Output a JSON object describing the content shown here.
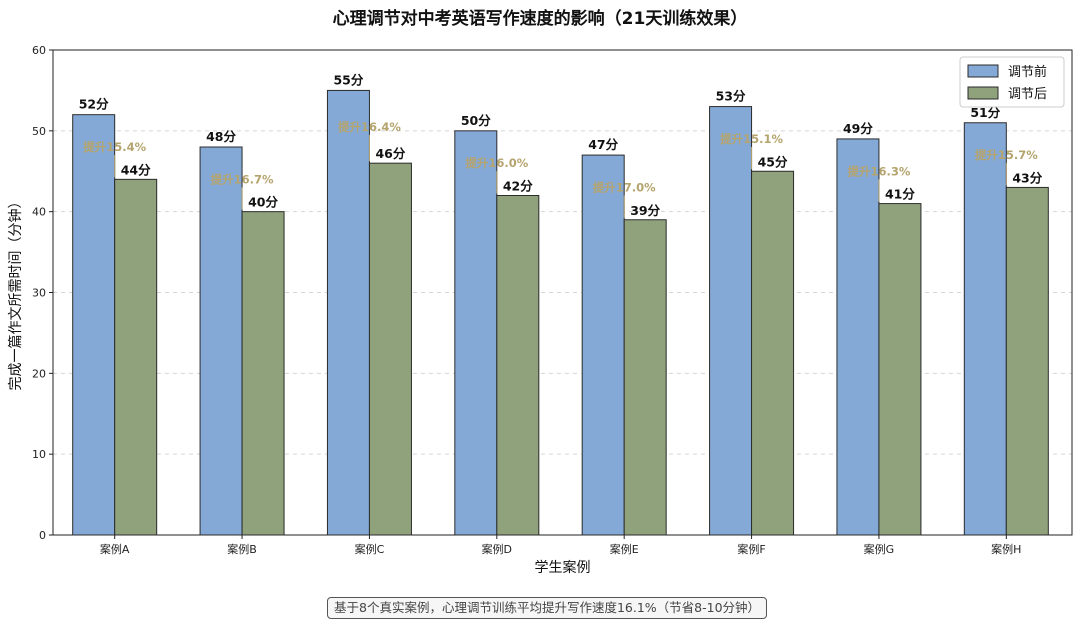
{
  "chart_data": {
    "type": "bar",
    "title": "心理调节对中考英语写作速度的影响（21天训练效果）",
    "xlabel": "学生案例",
    "ylabel": "完成一篇作文所需时间（分钟）",
    "ylim": [
      0,
      60
    ],
    "yticks": [
      0,
      10,
      20,
      30,
      40,
      50,
      60
    ],
    "grid": "horizontal-dashed",
    "legend_position": "top-right",
    "categories": [
      "案例A",
      "案例B",
      "案例C",
      "案例D",
      "案例E",
      "案例F",
      "案例G",
      "案例H"
    ],
    "series": [
      {
        "name": "调节前",
        "color": "#84a9d6",
        "values": [
          52,
          48,
          55,
          50,
          47,
          53,
          49,
          51
        ],
        "labels": [
          "52分",
          "48分",
          "55分",
          "50分",
          "47分",
          "53分",
          "49分",
          "51分"
        ]
      },
      {
        "name": "调节后",
        "color": "#8fa27c",
        "values": [
          44,
          40,
          46,
          42,
          39,
          45,
          41,
          43
        ],
        "labels": [
          "44分",
          "40分",
          "46分",
          "42分",
          "39分",
          "45分",
          "41分",
          "43分"
        ]
      }
    ],
    "improvement_annotations": [
      "提升15.4%",
      "提升16.7%",
      "提升16.4%",
      "提升16.0%",
      "提升17.0%",
      "提升15.1%",
      "提升16.3%",
      "提升15.7%"
    ],
    "annotation_color": "#b5a46e"
  },
  "footer": {
    "note": "基于8个真实案例，心理调节训练平均提升写作速度16.1%（节省8-10分钟）"
  }
}
